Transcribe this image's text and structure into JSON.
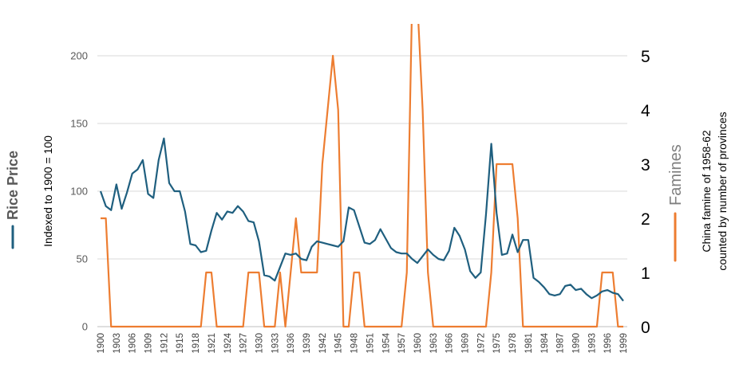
{
  "chart_data": {
    "type": "line",
    "x": [
      1900,
      1901,
      1902,
      1903,
      1904,
      1905,
      1906,
      1907,
      1908,
      1909,
      1910,
      1911,
      1912,
      1913,
      1914,
      1915,
      1916,
      1917,
      1918,
      1919,
      1920,
      1921,
      1922,
      1923,
      1924,
      1925,
      1926,
      1927,
      1928,
      1929,
      1930,
      1931,
      1932,
      1933,
      1934,
      1935,
      1936,
      1937,
      1938,
      1939,
      1940,
      1941,
      1942,
      1943,
      1944,
      1945,
      1946,
      1947,
      1948,
      1949,
      1950,
      1951,
      1952,
      1953,
      1954,
      1955,
      1956,
      1957,
      1958,
      1959,
      1960,
      1961,
      1962,
      1963,
      1964,
      1965,
      1966,
      1967,
      1968,
      1969,
      1970,
      1971,
      1972,
      1973,
      1974,
      1975,
      1976,
      1977,
      1978,
      1979,
      1980,
      1981,
      1982,
      1983,
      1984,
      1985,
      1986,
      1987,
      1988,
      1989,
      1990,
      1991,
      1992,
      1993,
      1994,
      1995,
      1996,
      1997,
      1998,
      1999
    ],
    "x_tick_labels": [
      "1900",
      "1903",
      "1906",
      "1909",
      "1912",
      "1915",
      "1918",
      "1921",
      "1924",
      "1927",
      "1930",
      "1933",
      "1936",
      "1939",
      "1942",
      "1945",
      "1948",
      "1951",
      "1954",
      "1957",
      "1960",
      "1963",
      "1966",
      "1969",
      "1972",
      "1975",
      "1978",
      "1981",
      "1984",
      "1987",
      "1990",
      "1993",
      "1996",
      "1999"
    ],
    "series": [
      {
        "name": "Rice Price",
        "axis": "left",
        "color": "#1F5F7F",
        "values": [
          100,
          89,
          86,
          105,
          87,
          99,
          113,
          116,
          123,
          98,
          95,
          123,
          139,
          106,
          100,
          100,
          85,
          61,
          60,
          55,
          56,
          71,
          84,
          79,
          85,
          84,
          89,
          85,
          78,
          77,
          63,
          38,
          37,
          34,
          44,
          54,
          53,
          54,
          50,
          49,
          59,
          63,
          62,
          61,
          60,
          59,
          63,
          88,
          86,
          74,
          62,
          61,
          64,
          72,
          65,
          58,
          55,
          54,
          54,
          50,
          47,
          52,
          57,
          53,
          50,
          49,
          56,
          73,
          67,
          57,
          41,
          36,
          40,
          83,
          135,
          84,
          53,
          54,
          68,
          55,
          64,
          64,
          36,
          33,
          29,
          24,
          23,
          24,
          30,
          31,
          27,
          28,
          24,
          21,
          23,
          26,
          27,
          25,
          24,
          19
        ]
      },
      {
        "name": "Famines",
        "axis": "right",
        "color": "#ED7D31",
        "values": [
          2,
          2,
          0,
          0,
          0,
          0,
          0,
          0,
          0,
          0,
          0,
          0,
          0,
          0,
          0,
          0,
          0,
          0,
          0,
          0,
          1,
          1,
          0,
          0,
          0,
          0,
          0,
          0,
          1,
          1,
          1,
          0,
          0,
          0,
          1,
          0,
          1,
          2,
          1,
          1,
          1,
          1,
          3,
          4,
          5,
          4,
          0,
          0,
          1,
          1,
          0,
          0,
          0,
          0,
          0,
          0,
          0,
          0,
          1,
          6,
          6,
          4,
          1,
          0,
          0,
          0,
          0,
          0,
          0,
          0,
          0,
          0,
          0,
          0,
          1,
          3,
          3,
          3,
          3,
          2,
          0,
          0,
          0,
          0,
          0,
          0,
          0,
          0,
          0,
          0,
          0,
          0,
          0,
          0,
          0,
          1,
          1,
          1,
          0,
          0
        ]
      }
    ],
    "y_left": {
      "ticks": [
        "0",
        "50",
        "100",
        "150",
        "200"
      ],
      "range": [
        0,
        225
      ]
    },
    "y_right": {
      "ticks": [
        "0",
        "1",
        "2",
        "3",
        "4",
        "5"
      ],
      "range": [
        0,
        5.625
      ]
    },
    "left_legend_title": "Rice Price",
    "left_axis_label": "Indexed to 1900 = 100",
    "right_legend_title": "Famines",
    "right_axis_label_line1": "China famine of 1958-62",
    "right_axis_label_line2": "counted by number of provinces",
    "grid": true
  }
}
